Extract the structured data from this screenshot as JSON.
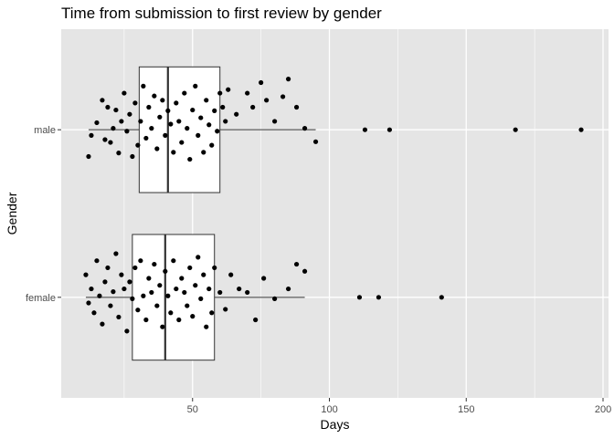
{
  "chart_data": {
    "type": "boxplot",
    "title": "Time from submission to first review by gender",
    "xlabel": "Days",
    "ylabel": "Gender",
    "xlim": [
      2,
      202
    ],
    "x_ticks": [
      50,
      100,
      150,
      200
    ],
    "categories": [
      "female",
      "male"
    ],
    "grid": true,
    "background": "#e5e5e5",
    "colors": {
      "panel": "#e5e5e5",
      "grid": "#ffffff",
      "box_fill": "#ffffff",
      "line": "#333333",
      "point": "#000000"
    },
    "boxes": [
      {
        "category": "male",
        "whisker_low": 12,
        "q1": 30.5,
        "median": 41,
        "q3": 60,
        "whisker_high": 95,
        "outliers": [
          113,
          122,
          168,
          192
        ]
      },
      {
        "category": "female",
        "whisker_low": 11,
        "q1": 28,
        "median": 40,
        "q3": 58,
        "whisker_high": 91,
        "outliers": [
          111,
          118,
          141
        ]
      }
    ],
    "points": {
      "male": [
        [
          12,
          -0.38
        ],
        [
          13,
          -0.08
        ],
        [
          15,
          0.1
        ],
        [
          17,
          0.42
        ],
        [
          18,
          -0.14
        ],
        [
          19,
          0.32
        ],
        [
          20,
          -0.18
        ],
        [
          21,
          0.02
        ],
        [
          22,
          0.28
        ],
        [
          23,
          -0.33
        ],
        [
          24,
          0.12
        ],
        [
          25,
          0.52
        ],
        [
          26,
          -0.02
        ],
        [
          27,
          0.22
        ],
        [
          28,
          -0.38
        ],
        [
          29,
          0.38
        ],
        [
          30,
          -0.22
        ],
        [
          31,
          0.12
        ],
        [
          32,
          0.62
        ],
        [
          33,
          -0.12
        ],
        [
          34,
          0.32
        ],
        [
          35,
          0.02
        ],
        [
          36,
          0.48
        ],
        [
          37,
          -0.27
        ],
        [
          38,
          0.18
        ],
        [
          39,
          0.42
        ],
        [
          40,
          -0.08
        ],
        [
          41,
          0.27
        ],
        [
          42,
          0.08
        ],
        [
          43,
          -0.32
        ],
        [
          44,
          0.38
        ],
        [
          45,
          0.12
        ],
        [
          46,
          -0.18
        ],
        [
          47,
          0.52
        ],
        [
          48,
          0.02
        ],
        [
          49,
          -0.42
        ],
        [
          50,
          0.28
        ],
        [
          51,
          0.62
        ],
        [
          52,
          -0.08
        ],
        [
          53,
          0.17
        ],
        [
          54,
          -0.32
        ],
        [
          55,
          0.42
        ],
        [
          56,
          0.07
        ],
        [
          57,
          -0.22
        ],
        [
          58,
          0.27
        ],
        [
          59,
          -0.02
        ],
        [
          60,
          0.52
        ],
        [
          61,
          0.32
        ],
        [
          62,
          0.12
        ],
        [
          63,
          0.57
        ],
        [
          66,
          0.22
        ],
        [
          70,
          0.52
        ],
        [
          72,
          0.32
        ],
        [
          75,
          0.67
        ],
        [
          77,
          0.42
        ],
        [
          80,
          0.12
        ],
        [
          83,
          0.47
        ],
        [
          85,
          0.72
        ],
        [
          88,
          0.32
        ],
        [
          91,
          0.02
        ],
        [
          95,
          -0.17
        ]
      ],
      "female": [
        [
          11,
          0.32
        ],
        [
          12,
          -0.08
        ],
        [
          13,
          0.12
        ],
        [
          14,
          -0.22
        ],
        [
          15,
          0.52
        ],
        [
          16,
          0.02
        ],
        [
          17,
          -0.38
        ],
        [
          18,
          0.22
        ],
        [
          19,
          0.42
        ],
        [
          20,
          -0.12
        ],
        [
          21,
          0.08
        ],
        [
          22,
          0.62
        ],
        [
          23,
          -0.28
        ],
        [
          24,
          0.32
        ],
        [
          25,
          0.12
        ],
        [
          26,
          -0.48
        ],
        [
          27,
          0.22
        ],
        [
          28,
          -0.02
        ],
        [
          29,
          0.42
        ],
        [
          30,
          -0.18
        ],
        [
          31,
          0.52
        ],
        [
          32,
          0.02
        ],
        [
          33,
          -0.32
        ],
        [
          34,
          0.27
        ],
        [
          35,
          0.07
        ],
        [
          36,
          0.47
        ],
        [
          37,
          -0.12
        ],
        [
          38,
          0.17
        ],
        [
          39,
          -0.42
        ],
        [
          40,
          0.37
        ],
        [
          41,
          0.02
        ],
        [
          42,
          -0.22
        ],
        [
          43,
          0.52
        ],
        [
          44,
          0.12
        ],
        [
          45,
          -0.32
        ],
        [
          46,
          0.27
        ],
        [
          47,
          0.07
        ],
        [
          48,
          -0.12
        ],
        [
          49,
          0.42
        ],
        [
          50,
          -0.27
        ],
        [
          51,
          0.17
        ],
        [
          52,
          0.57
        ],
        [
          53,
          -0.02
        ],
        [
          54,
          0.32
        ],
        [
          55,
          -0.42
        ],
        [
          56,
          0.12
        ],
        [
          57,
          -0.22
        ],
        [
          58,
          0.42
        ],
        [
          60,
          0.07
        ],
        [
          62,
          -0.17
        ],
        [
          64,
          0.32
        ],
        [
          67,
          0.12
        ],
        [
          70,
          0.07
        ],
        [
          73,
          -0.32
        ],
        [
          76,
          0.27
        ],
        [
          80,
          -0.02
        ],
        [
          85,
          0.12
        ],
        [
          88,
          0.47
        ],
        [
          91,
          0.37
        ]
      ]
    }
  }
}
